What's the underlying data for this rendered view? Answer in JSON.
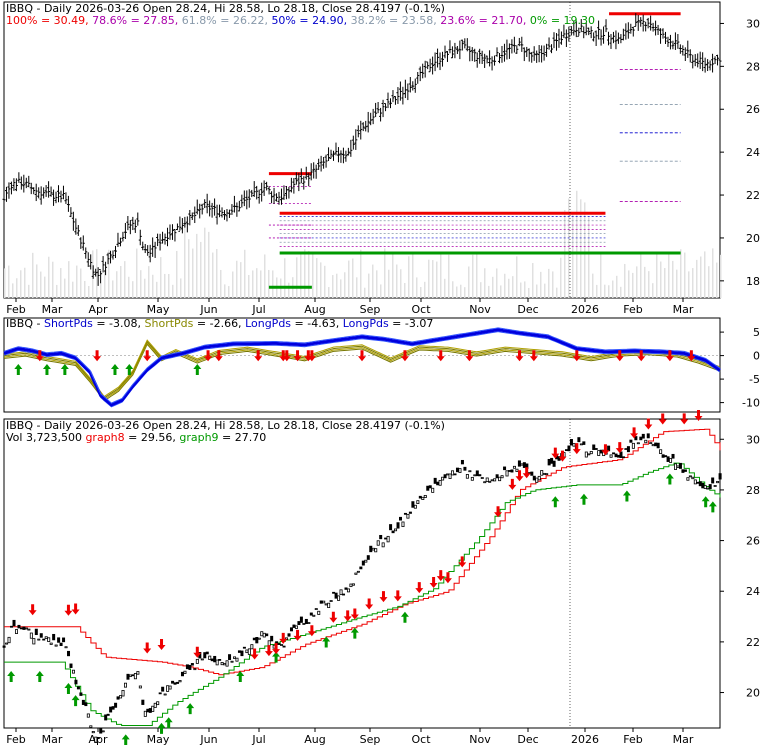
{
  "chart_data": [
    {
      "type": "candlestick",
      "panel": "price-fibonacci",
      "title": "IBBQ - Daily 2026-03-26 Open 28.24, Hi 28.58, Lo 28.18, Close 28.4197 (-0.1%)",
      "fib_levels": [
        {
          "label": "100%",
          "value": 30.49,
          "text": "100% = 30.49,",
          "color": "#ee0000"
        },
        {
          "label": "78.6%",
          "value": 27.85,
          "text": "78.6% = 27.85,",
          "color": "#aa00aa"
        },
        {
          "label": "61.8%",
          "value": 26.22,
          "text": "61.8% = 26.22,",
          "color": "#8899aa"
        },
        {
          "label": "50%",
          "value": 24.9,
          "text": "50% = 24.90,",
          "color": "#0000cc"
        },
        {
          "label": "38.2%",
          "value": 23.58,
          "text": "38.2% = 23.58,",
          "color": "#8899aa"
        },
        {
          "label": "23.6%",
          "value": 21.7,
          "text": "23.6% = 21.70,",
          "color": "#aa00aa"
        },
        {
          "label": "0%",
          "value": 19.3,
          "text": "0% = 19.30",
          "color": "#009900"
        }
      ],
      "y_ticks": [
        18,
        20,
        22,
        24,
        26,
        28,
        30
      ],
      "ylim": [
        17.2,
        31.0
      ],
      "x_labels": [
        "Feb",
        "Mar",
        "Apr",
        "May",
        "Jun",
        "Jul",
        "Aug",
        "Sep",
        "Oct",
        "Nov",
        "Dec",
        "2026",
        "Feb",
        "Mar"
      ],
      "resistance_support": [
        {
          "from": 0.385,
          "to": 0.84,
          "value": 21.15,
          "color": "#ee0000"
        },
        {
          "from": 0.385,
          "to": 0.945,
          "value": 19.3,
          "color": "#009900"
        },
        {
          "from": 0.37,
          "to": 0.43,
          "value": 23.0,
          "color": "#ee0000"
        },
        {
          "from": 0.37,
          "to": 0.43,
          "value": 17.7,
          "color": "#009900"
        },
        {
          "from": 0.845,
          "to": 0.945,
          "value": 30.45,
          "color": "#ee0000"
        }
      ],
      "close_anchors": [
        [
          0,
          21.8
        ],
        [
          0.02,
          22.5
        ],
        [
          0.05,
          22.6
        ],
        [
          0.09,
          22.2
        ],
        [
          0.13,
          22.0
        ],
        [
          0.17,
          21.9
        ],
        [
          0.2,
          20.5
        ],
        [
          0.24,
          18.9
        ],
        [
          0.26,
          18.2
        ],
        [
          0.28,
          18.7
        ],
        [
          0.31,
          19.5
        ],
        [
          0.33,
          20.1
        ],
        [
          0.35,
          20.6
        ],
        [
          0.375,
          20.7
        ],
        [
          0.39,
          19.4
        ],
        [
          0.41,
          19.3
        ],
        [
          0.43,
          19.8
        ],
        [
          0.46,
          20.2
        ],
        [
          0.48,
          20.4
        ],
        [
          0.5,
          20.7
        ],
        [
          0.53,
          21.0
        ],
        [
          0.56,
          21.5
        ],
        [
          0.59,
          21.3
        ],
        [
          0.62,
          21.2
        ],
        [
          0.65,
          21.4
        ],
        [
          0.68,
          21.8
        ],
        [
          0.7,
          22.0
        ],
        [
          0.73,
          22.4
        ],
        [
          0.75,
          22.0
        ],
        [
          0.78,
          21.9
        ],
        [
          0.81,
          22.5
        ],
        [
          0.84,
          22.8
        ],
        [
          0.86,
          23.0
        ],
        [
          0.88,
          23.3
        ],
        [
          0.9,
          23.6
        ],
        [
          0.92,
          23.8
        ],
        [
          0.94,
          24.0
        ],
        [
          0.96,
          23.9
        ],
        [
          0.98,
          24.5
        ],
        [
          1.0,
          25.1
        ]
      ],
      "close_series_b": [
        [
          0,
          25.1
        ],
        [
          0.04,
          25.8
        ],
        [
          0.08,
          26.3
        ],
        [
          0.12,
          26.9
        ],
        [
          0.16,
          27.5
        ],
        [
          0.2,
          28.2
        ],
        [
          0.24,
          28.6
        ],
        [
          0.28,
          28.9
        ],
        [
          0.32,
          28.5
        ],
        [
          0.36,
          28.3
        ],
        [
          0.4,
          28.7
        ],
        [
          0.44,
          29.0
        ],
        [
          0.48,
          28.4
        ],
        [
          0.52,
          28.8
        ],
        [
          0.56,
          29.4
        ],
        [
          0.6,
          29.8
        ],
        [
          0.64,
          29.5
        ],
        [
          0.68,
          29.6
        ],
        [
          0.72,
          29.2
        ],
        [
          0.76,
          29.9
        ],
        [
          0.8,
          30.1
        ],
        [
          0.84,
          29.4
        ],
        [
          0.88,
          29.0
        ],
        [
          0.92,
          28.4
        ],
        [
          0.96,
          28.1
        ],
        [
          1.0,
          28.4
        ]
      ]
    },
    {
      "type": "line",
      "panel": "guppy-indicator",
      "title": "IBBQ - ShortPds = -3.08, ShortPds = -2.66, LongPds = -4.63, LongPds = -3.07",
      "labels": [
        {
          "text": "IBBQ - ",
          "color": "#000000"
        },
        {
          "text": "ShortPds",
          "color": "#0000cc"
        },
        {
          "text": " = -3.08, ",
          "color": "#000000"
        },
        {
          "text": "ShortPds",
          "color": "#888800"
        },
        {
          "text": " = -2.66, ",
          "color": "#000000"
        },
        {
          "text": "LongPds",
          "color": "#0000cc"
        },
        {
          "text": " = -4.63, ",
          "color": "#000000"
        },
        {
          "text": "LongPds",
          "color": "#0000cc"
        },
        {
          "text": " = -3.07",
          "color": "#000000"
        }
      ],
      "y_ticks": [
        5,
        0,
        -5,
        -10
      ],
      "ylim": [
        -12,
        8
      ],
      "series_blue": [
        [
          0,
          0.5
        ],
        [
          0.02,
          1.5
        ],
        [
          0.04,
          1.0
        ],
        [
          0.06,
          0.2
        ],
        [
          0.08,
          0.5
        ],
        [
          0.1,
          -0.5
        ],
        [
          0.12,
          -3.5
        ],
        [
          0.135,
          -8.5
        ],
        [
          0.15,
          -10.5
        ],
        [
          0.165,
          -9.5
        ],
        [
          0.18,
          -6.5
        ],
        [
          0.2,
          -3.0
        ],
        [
          0.22,
          -0.5
        ],
        [
          0.25,
          0.5
        ],
        [
          0.28,
          1.8
        ],
        [
          0.32,
          2.5
        ],
        [
          0.38,
          2.6
        ],
        [
          0.42,
          2.3
        ],
        [
          0.46,
          3.2
        ],
        [
          0.5,
          4.0
        ],
        [
          0.53,
          3.5
        ],
        [
          0.57,
          2.5
        ],
        [
          0.61,
          3.5
        ],
        [
          0.65,
          4.5
        ],
        [
          0.69,
          5.5
        ],
        [
          0.72,
          4.8
        ],
        [
          0.76,
          4.0
        ],
        [
          0.8,
          1.5
        ],
        [
          0.84,
          0.8
        ],
        [
          0.88,
          1.0
        ],
        [
          0.92,
          0.8
        ],
        [
          0.95,
          0.5
        ],
        [
          0.98,
          -1.0
        ],
        [
          1.0,
          -3.1
        ]
      ],
      "series_olive": [
        [
          0,
          0.0
        ],
        [
          0.03,
          0.5
        ],
        [
          0.06,
          -0.5
        ],
        [
          0.1,
          -1.5
        ],
        [
          0.12,
          -5.0
        ],
        [
          0.14,
          -9.0
        ],
        [
          0.16,
          -7.0
        ],
        [
          0.18,
          -3.5
        ],
        [
          0.2,
          3.0
        ],
        [
          0.22,
          -0.5
        ],
        [
          0.24,
          1.0
        ],
        [
          0.27,
          -1.0
        ],
        [
          0.3,
          0.8
        ],
        [
          0.34,
          1.5
        ],
        [
          0.38,
          0.5
        ],
        [
          0.42,
          -0.5
        ],
        [
          0.46,
          1.5
        ],
        [
          0.5,
          2.0
        ],
        [
          0.54,
          -0.8
        ],
        [
          0.58,
          1.8
        ],
        [
          0.62,
          1.5
        ],
        [
          0.66,
          0.5
        ],
        [
          0.7,
          1.5
        ],
        [
          0.74,
          1.0
        ],
        [
          0.78,
          0.5
        ],
        [
          0.82,
          -0.5
        ],
        [
          0.86,
          0.5
        ],
        [
          0.9,
          0.8
        ],
        [
          0.94,
          0.3
        ],
        [
          0.97,
          -1.0
        ],
        [
          1.0,
          -2.7
        ]
      ],
      "buy_arrows": [
        0.02,
        0.06,
        0.085,
        0.155,
        0.175,
        0.27
      ],
      "sell_arrows": [
        0.05,
        0.13,
        0.2,
        0.285,
        0.3,
        0.355,
        0.39,
        0.395,
        0.41,
        0.425,
        0.43,
        0.5,
        0.56,
        0.61,
        0.65,
        0.72,
        0.74,
        0.8,
        0.86,
        0.89,
        0.93,
        0.96
      ]
    },
    {
      "type": "candlestick",
      "panel": "price-volume",
      "title": "IBBQ - Daily 2026-03-26 Open 28.24, Hi 28.58, Lo 28.18, Close 28.4197 (-0.1%)",
      "labels": [
        {
          "text": "Vol 3,723,500 ",
          "color": "#000000"
        },
        {
          "text": "graph8",
          "color": "#ee0000"
        },
        {
          "text": " = 29.56, ",
          "color": "#000000"
        },
        {
          "text": "graph9",
          "color": "#009900"
        },
        {
          "text": " = 27.70",
          "color": "#000000"
        }
      ],
      "y_ticks": [
        20,
        22,
        24,
        26,
        28,
        30
      ],
      "ylim": [
        18.6,
        30.8
      ],
      "x_labels": [
        "Feb",
        "Mar",
        "Apr",
        "May",
        "Jun",
        "Jul",
        "Aug",
        "Sep",
        "Oct",
        "Nov",
        "Dec",
        "2026",
        "Feb",
        "Mar"
      ],
      "graph8_anchors": [
        [
          0,
          22.6
        ],
        [
          0.1,
          22.6
        ],
        [
          0.14,
          21.4
        ],
        [
          0.18,
          21.3
        ],
        [
          0.22,
          21.2
        ],
        [
          0.26,
          21.0
        ],
        [
          0.3,
          20.7
        ],
        [
          0.36,
          21.0
        ],
        [
          0.42,
          21.9
        ],
        [
          0.5,
          22.7
        ],
        [
          0.56,
          23.5
        ],
        [
          0.62,
          24.0
        ],
        [
          0.68,
          26.2
        ],
        [
          0.72,
          28.0
        ],
        [
          0.78,
          28.9
        ],
        [
          0.86,
          29.2
        ],
        [
          0.92,
          30.3
        ],
        [
          0.98,
          30.4
        ],
        [
          1.0,
          29.56
        ]
      ],
      "graph9_anchors": [
        [
          0,
          21.2
        ],
        [
          0.08,
          21.2
        ],
        [
          0.12,
          19.3
        ],
        [
          0.16,
          18.7
        ],
        [
          0.2,
          18.7
        ],
        [
          0.24,
          19.6
        ],
        [
          0.3,
          20.6
        ],
        [
          0.36,
          21.8
        ],
        [
          0.42,
          22.3
        ],
        [
          0.5,
          23.0
        ],
        [
          0.55,
          23.4
        ],
        [
          0.6,
          24.1
        ],
        [
          0.66,
          26.0
        ],
        [
          0.7,
          27.5
        ],
        [
          0.74,
          28.0
        ],
        [
          0.8,
          28.2
        ],
        [
          0.86,
          28.2
        ],
        [
          0.9,
          28.7
        ],
        [
          0.94,
          29.1
        ],
        [
          0.98,
          28.1
        ],
        [
          1.0,
          27.7
        ]
      ],
      "buy_arrows": [
        0.01,
        0.05,
        0.09,
        0.1,
        0.17,
        0.22,
        0.23,
        0.26,
        0.33,
        0.38,
        0.45,
        0.49,
        0.56,
        0.77,
        0.81,
        0.87,
        0.93,
        0.98,
        0.99
      ],
      "sell_arrows": [
        0.04,
        0.09,
        0.1,
        0.2,
        0.22,
        0.27,
        0.35,
        0.37,
        0.38,
        0.39,
        0.41,
        0.43,
        0.46,
        0.48,
        0.49,
        0.51,
        0.53,
        0.55,
        0.58,
        0.6,
        0.61,
        0.62,
        0.64,
        0.69,
        0.71,
        0.72,
        0.73,
        0.77,
        0.78,
        0.8,
        0.84,
        0.86,
        0.88,
        0.9,
        0.92,
        0.95,
        0.97
      ]
    }
  ]
}
